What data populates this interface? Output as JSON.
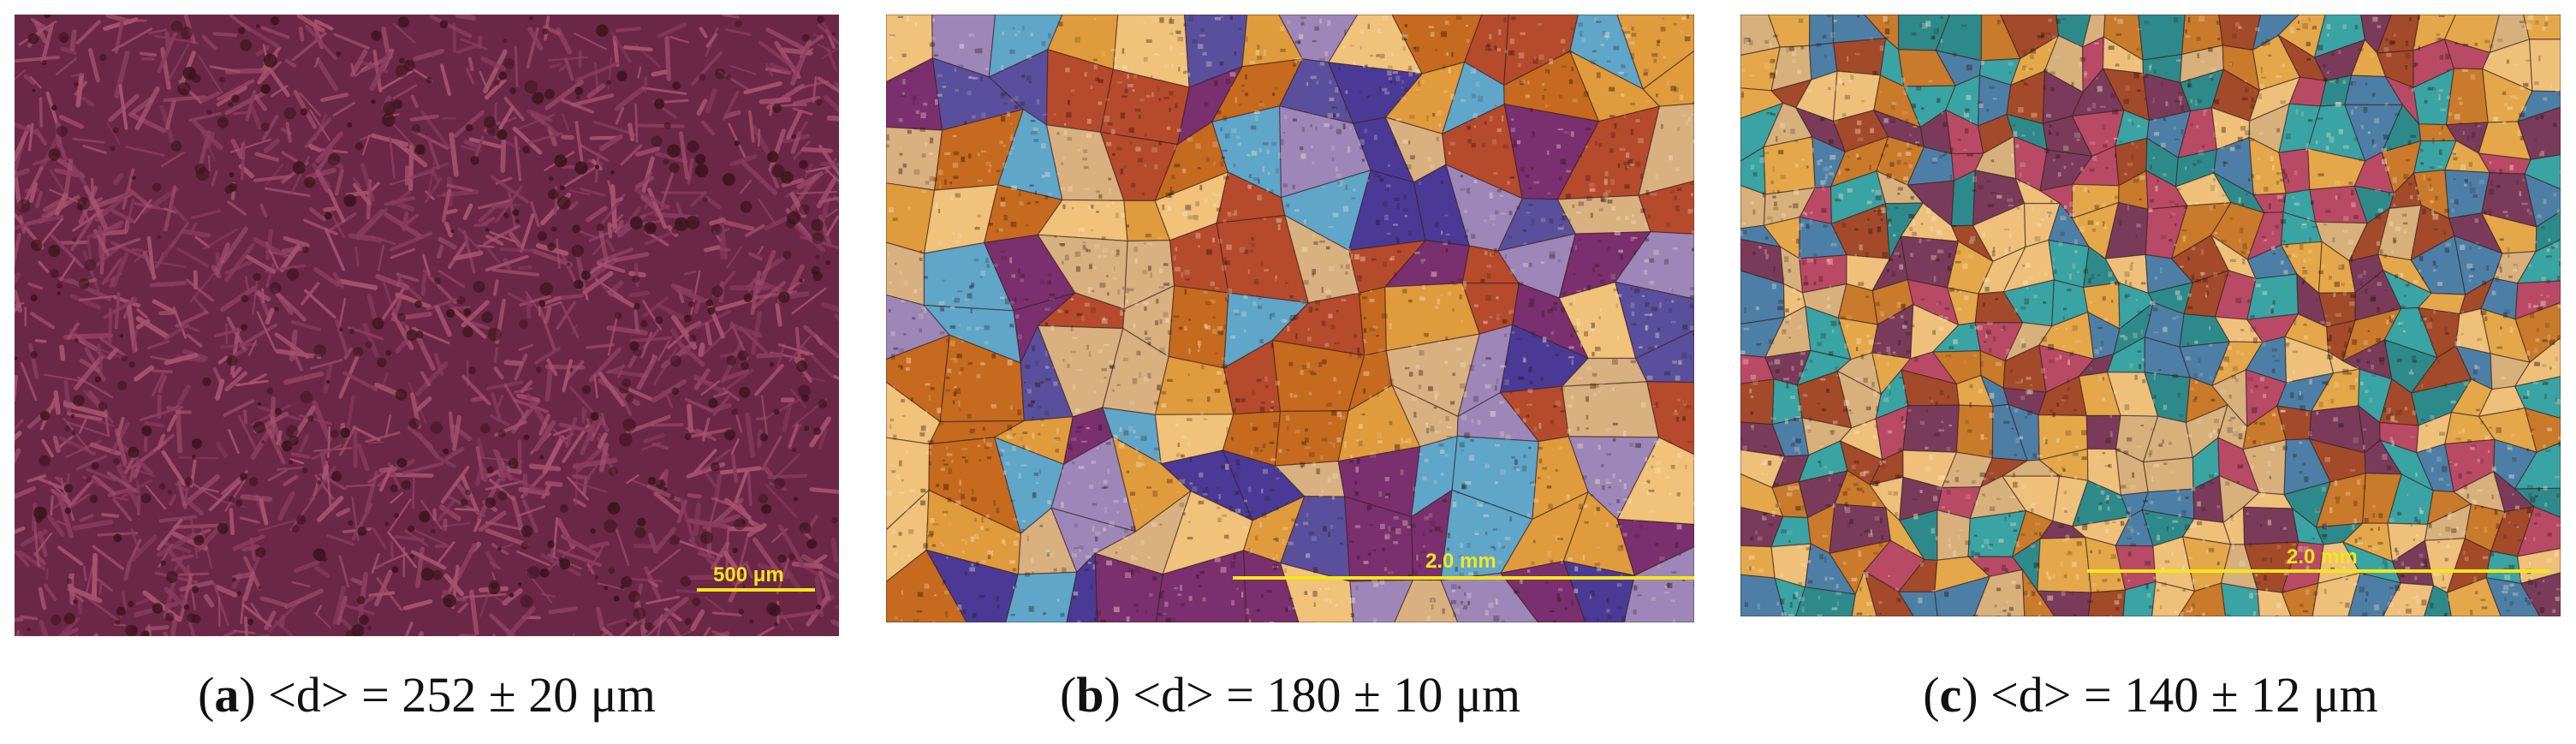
{
  "panels": [
    {
      "letter": "a",
      "quantity": "<d> = ",
      "value": "252",
      "pm": "±",
      "error": "20",
      "unit": "μm",
      "scale_bar": "500 μm",
      "texture": "dendritic",
      "colors": [
        "#6b2746",
        "#8a3d5f",
        "#a5526f",
        "#3a141e"
      ]
    },
    {
      "letter": "b",
      "quantity": "<d> = ",
      "value": "180",
      "pm": "±",
      "error": "10",
      "unit": "μm",
      "scale_bar": "2.0 mm",
      "texture": "coarse-grains",
      "colors": [
        "#c56a1e",
        "#e09b3c",
        "#7a2f6e",
        "#4a3a96",
        "#5fa6c9",
        "#d9b07f",
        "#b54a2c",
        "#9d87b8",
        "#f0c27a",
        "#5a4f9c"
      ]
    },
    {
      "letter": "c",
      "quantity": "<d> = ",
      "value": "140",
      "pm": "±",
      "error": "12",
      "unit": "μm",
      "scale_bar": "2.0 mm",
      "texture": "fine-grains",
      "colors": [
        "#c97a2b",
        "#e4a84a",
        "#3aa3a3",
        "#b84a65",
        "#7a3b5a",
        "#d8b07c",
        "#4d7fa6",
        "#a34a2a",
        "#eec07a",
        "#2e8a8a"
      ]
    }
  ]
}
